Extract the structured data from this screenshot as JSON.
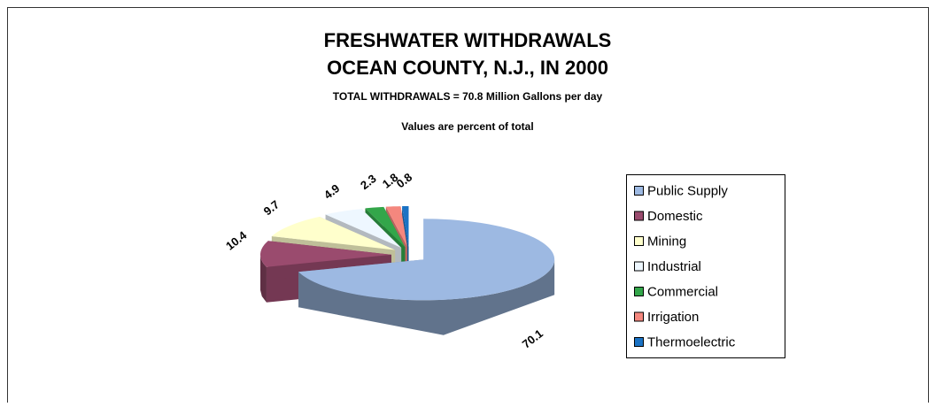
{
  "chart_data": {
    "type": "pie",
    "title": [
      "FRESHWATER WITHDRAWALS",
      "OCEAN COUNTY, N.J., IN 2000"
    ],
    "subtitle": "TOTAL WITHDRAWALS = 70.8 Million Gallons per day",
    "annotation": "Values are percent of total",
    "categories": [
      "Public Supply",
      "Domestic",
      "Mining",
      "Industrial",
      "Commercial",
      "Irrigation",
      "Thermoelectric"
    ],
    "values": [
      70.1,
      10.4,
      9.7,
      4.9,
      2.3,
      1.8,
      0.8
    ],
    "colors": [
      "#9db9e2",
      "#9a4b6e",
      "#ffffcc",
      "#eef7ff",
      "#33a64a",
      "#f4877e",
      "#1a72c4"
    ],
    "legend": "right"
  }
}
